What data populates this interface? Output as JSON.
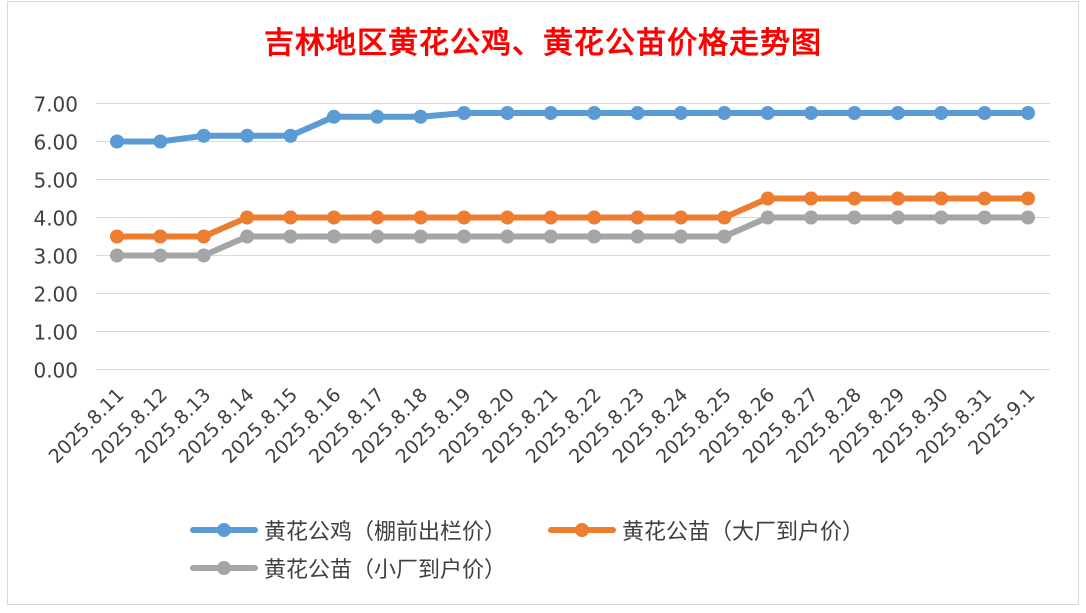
{
  "chart_data": {
    "type": "line",
    "title": "吉林地区黄花公鸡、黄花公苗价格走势图",
    "xlabel": "",
    "ylabel": "",
    "categories": [
      "2025.8.11",
      "2025.8.12",
      "2025.8.13",
      "2025.8.14",
      "2025.8.15",
      "2025.8.16",
      "2025.8.17",
      "2025.8.18",
      "2025.8.19",
      "2025.8.20",
      "2025.8.21",
      "2025.8.22",
      "2025.8.23",
      "2025.8.24",
      "2025.8.25",
      "2025.8.26",
      "2025.8.27",
      "2025.8.28",
      "2025.8.29",
      "2025.8.30",
      "2025.8.31",
      "2025.9.1"
    ],
    "y_ticks": [
      "0.00",
      "1.00",
      "2.00",
      "3.00",
      "4.00",
      "5.00",
      "6.00",
      "7.00"
    ],
    "ylim": [
      0,
      7
    ],
    "grid": true,
    "legend_position": "bottom",
    "series": [
      {
        "name": "黄花公鸡（棚前出栏价）",
        "color": "#5b9bd5",
        "values": [
          6.0,
          6.0,
          6.15,
          6.15,
          6.15,
          6.65,
          6.65,
          6.65,
          6.75,
          6.75,
          6.75,
          6.75,
          6.75,
          6.75,
          6.75,
          6.75,
          6.75,
          6.75,
          6.75,
          6.75,
          6.75,
          6.75
        ]
      },
      {
        "name": "黄花公苗（大厂到户价）",
        "color": "#ed7d31",
        "values": [
          3.5,
          3.5,
          3.5,
          4.0,
          4.0,
          4.0,
          4.0,
          4.0,
          4.0,
          4.0,
          4.0,
          4.0,
          4.0,
          4.0,
          4.0,
          4.5,
          4.5,
          4.5,
          4.5,
          4.5,
          4.5,
          4.5
        ]
      },
      {
        "name": "黄花公苗（小厂到户价）",
        "color": "#a5a5a5",
        "values": [
          3.0,
          3.0,
          3.0,
          3.5,
          3.5,
          3.5,
          3.5,
          3.5,
          3.5,
          3.5,
          3.5,
          3.5,
          3.5,
          3.5,
          3.5,
          4.0,
          4.0,
          4.0,
          4.0,
          4.0,
          4.0,
          4.0
        ]
      }
    ]
  }
}
